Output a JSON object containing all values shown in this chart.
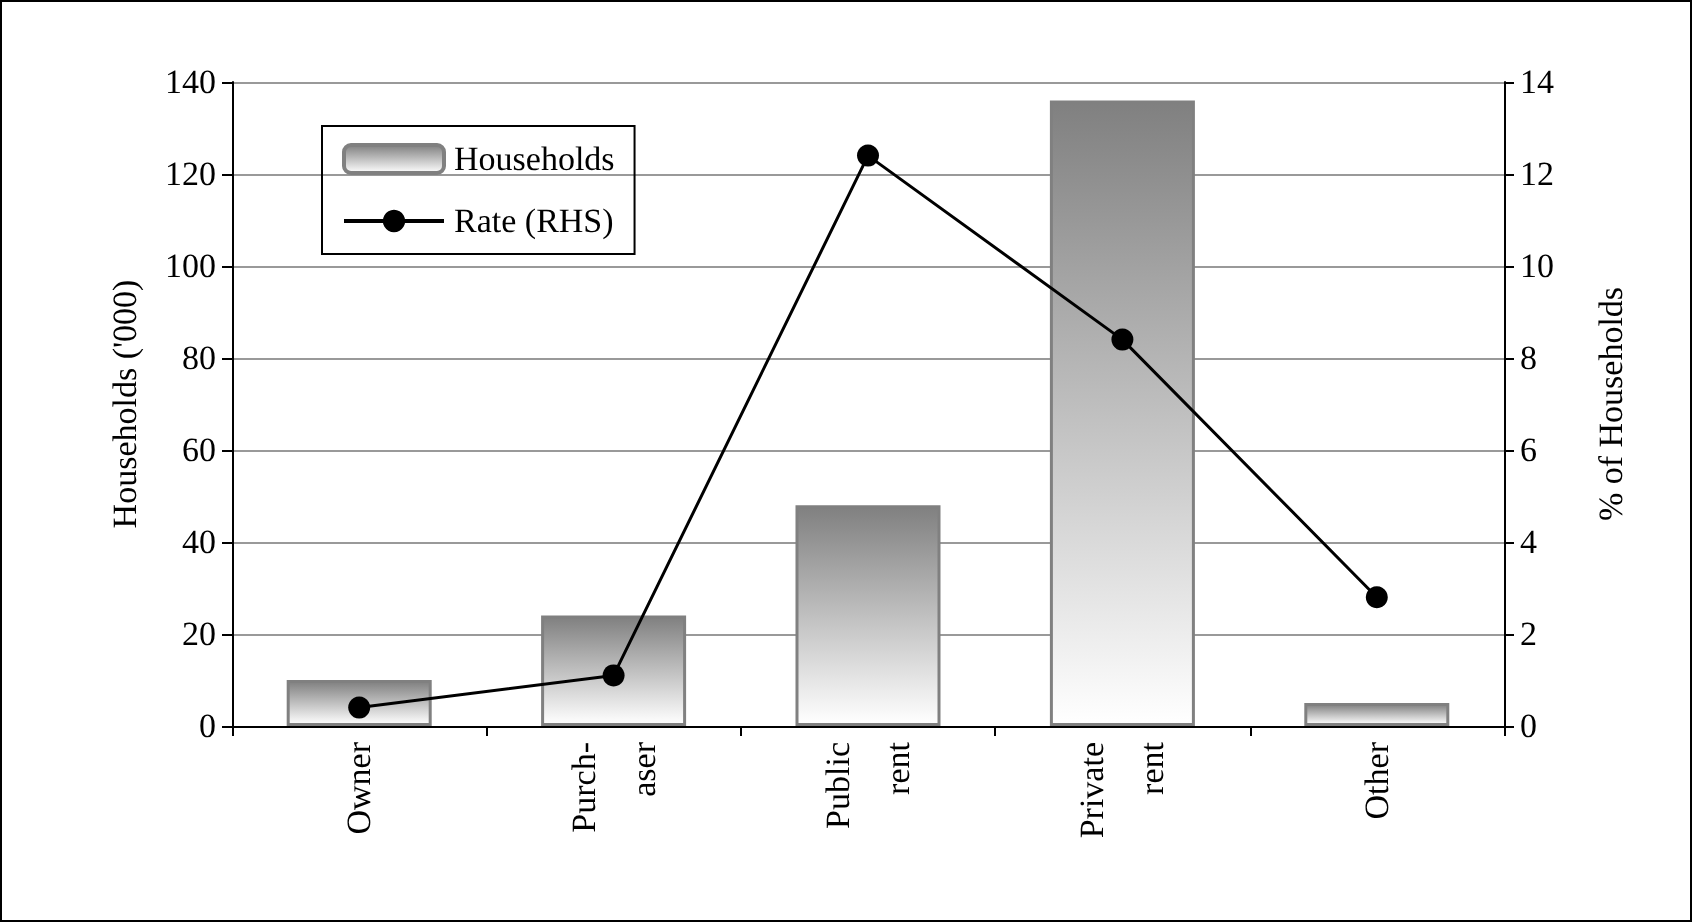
{
  "chart_data": {
    "type": "bar",
    "categories": [
      "Owner",
      "Purch-\naser",
      "Public\nrent",
      "Private\nrent",
      "Other"
    ],
    "series": [
      {
        "name": "Households",
        "color": "#808080",
        "values": [
          10,
          24,
          48,
          136,
          5
        ]
      },
      {
        "name": "Rate (RHS)",
        "type": "line",
        "axis": "y2",
        "color": "#000000",
        "marker": "circle",
        "values": [
          0.4,
          1.1,
          12.4,
          8.4,
          2.8
        ]
      }
    ],
    "ylabel": "Households ('000)",
    "y2label": "% of Households",
    "ylim": [
      0,
      140
    ],
    "yticks": [
      0,
      20,
      40,
      60,
      80,
      100,
      120,
      140
    ],
    "y2lim": [
      0,
      14
    ],
    "y2ticks": [
      0,
      2,
      4,
      6,
      8,
      10,
      12,
      14
    ],
    "grid": "y",
    "legend": "top left"
  }
}
